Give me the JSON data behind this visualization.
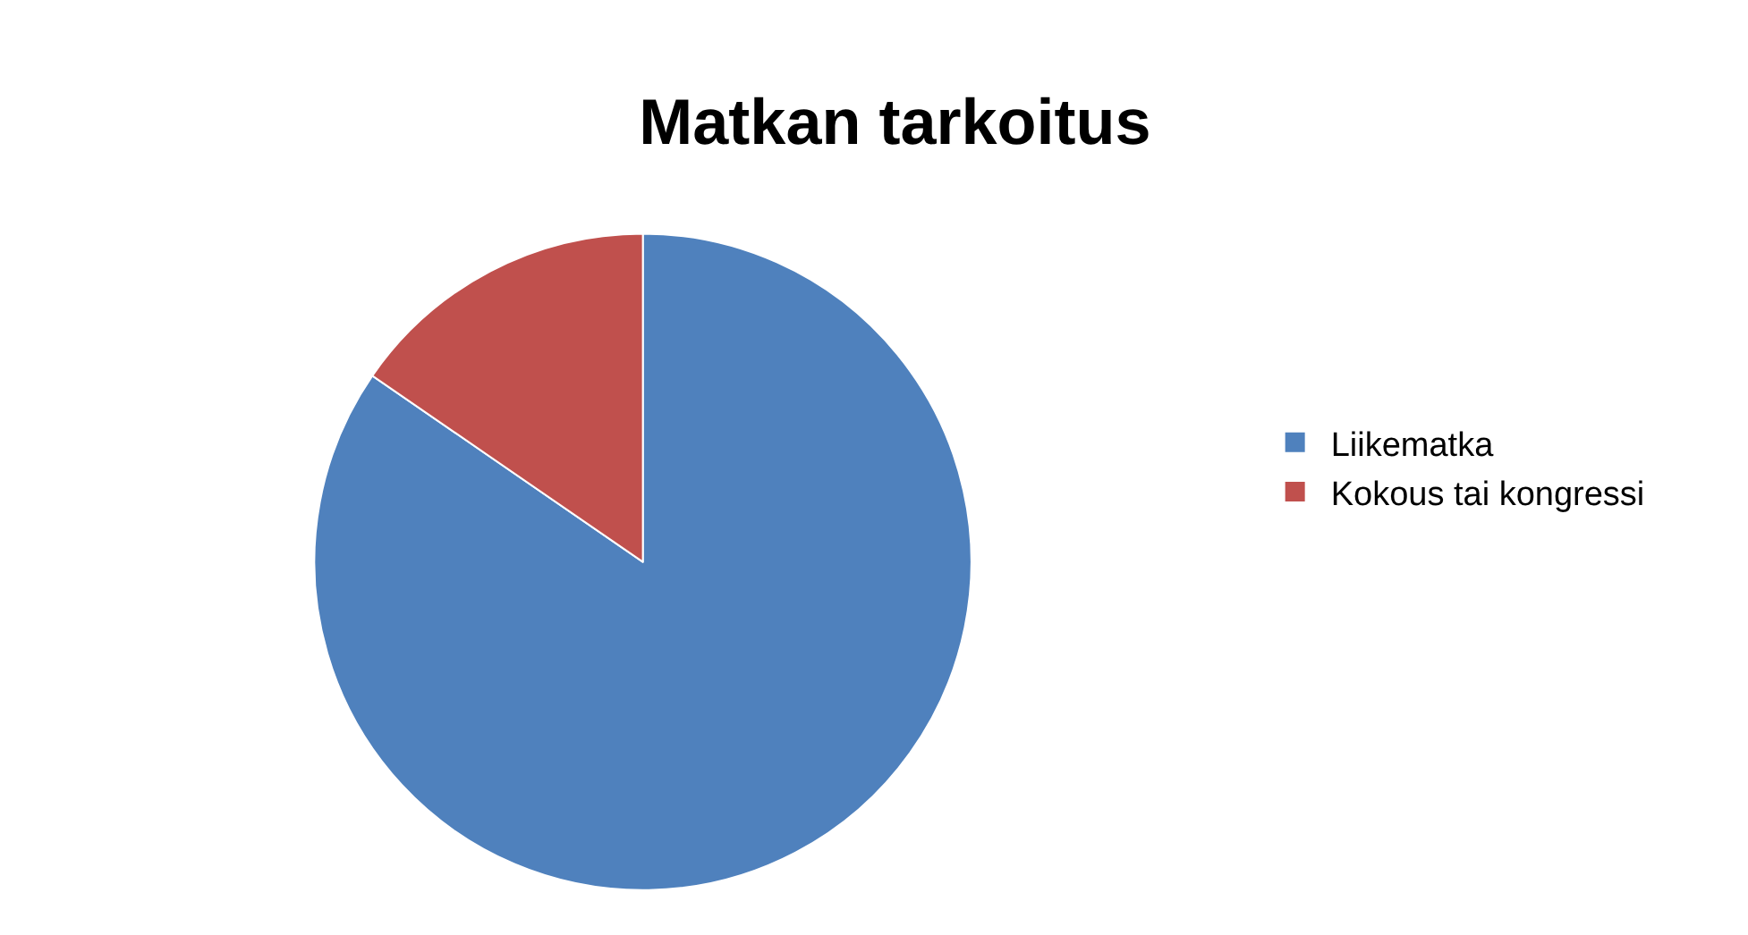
{
  "chart_data": {
    "type": "pie",
    "title": "Matkan tarkoitus",
    "categories": [
      "Liikematka",
      "Kokous tai kongressi"
    ],
    "values": [
      84.6,
      15.4
    ],
    "colors": [
      "#4f81bd",
      "#c0504d"
    ],
    "legend": "right"
  }
}
